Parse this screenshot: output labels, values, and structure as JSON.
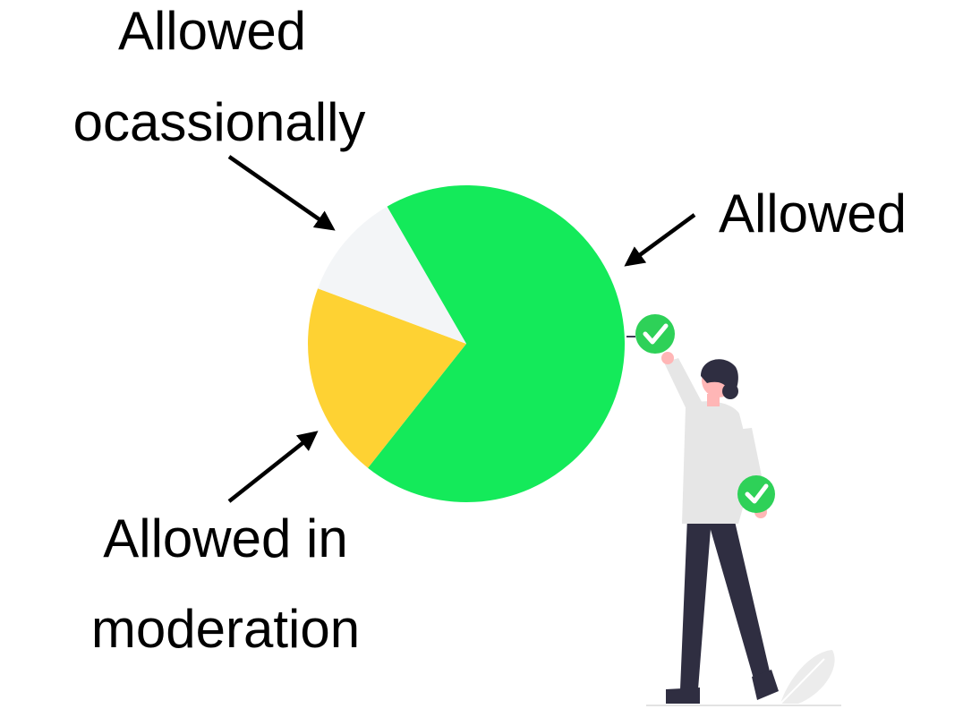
{
  "chart_data": {
    "type": "pie",
    "title": "",
    "slices": [
      {
        "label": "Allowed",
        "value": 69,
        "color": "#14ea5a"
      },
      {
        "label": "Allowed in moderation",
        "value": 20,
        "color": "#fed233"
      },
      {
        "label": "Allowed ocassionally",
        "value": 11,
        "color": "#f3f5f7"
      }
    ],
    "annotations": {
      "allowed": "Allowed",
      "moderation_line1": "Allowed in",
      "moderation_line2": "moderation",
      "occasional_line1": "Allowed",
      "occasional_line2": "ocassionally"
    },
    "legend": "none"
  },
  "colors": {
    "accent_green": "#14ea5a",
    "check_green": "#2ed158",
    "shirt": "#e6e6e6",
    "pants": "#2f2e41",
    "skin": "#ffb6b6",
    "hair": "#2f2e41"
  },
  "illustration": {
    "icons": [
      "check-circle-icon",
      "person-reaching-illustration",
      "leaf-icon"
    ]
  }
}
